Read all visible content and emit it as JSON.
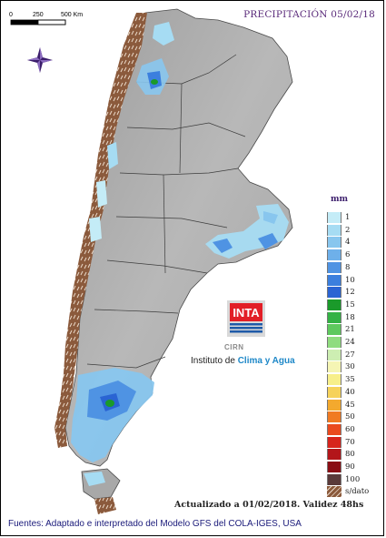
{
  "title": "PRECIPITACIÓN 05/02/18",
  "scale_bar": {
    "labels": [
      "0",
      "250",
      "500 Km"
    ]
  },
  "legend": {
    "unit": "mm",
    "items": [
      {
        "label": "1",
        "color": "#c4ecf7"
      },
      {
        "label": "2",
        "color": "#a6dcf3"
      },
      {
        "label": "4",
        "color": "#88c6ee"
      },
      {
        "label": "6",
        "color": "#6eb0ea"
      },
      {
        "label": "8",
        "color": "#4f93e3"
      },
      {
        "label": "10",
        "color": "#3b7fde"
      },
      {
        "label": "12",
        "color": "#2a64d3"
      },
      {
        "label": "15",
        "color": "#1a9a2a"
      },
      {
        "label": "18",
        "color": "#33b244"
      },
      {
        "label": "21",
        "color": "#5ec95e"
      },
      {
        "label": "24",
        "color": "#8fdc7f"
      },
      {
        "label": "27",
        "color": "#cdeeb2"
      },
      {
        "label": "30",
        "color": "#f5f5b4"
      },
      {
        "label": "35",
        "color": "#f7ef8a"
      },
      {
        "label": "40",
        "color": "#f6d25a"
      },
      {
        "label": "45",
        "color": "#f3a92e"
      },
      {
        "label": "50",
        "color": "#f07a22"
      },
      {
        "label": "60",
        "color": "#ea4a1e"
      },
      {
        "label": "70",
        "color": "#d7241c"
      },
      {
        "label": "80",
        "color": "#b3151a"
      },
      {
        "label": "90",
        "color": "#8a0d14"
      },
      {
        "label": "100",
        "color": "#5a3a3a"
      },
      {
        "label": "s/dato",
        "color": "#9b6b4e"
      }
    ]
  },
  "logo": {
    "brand": "INTA",
    "sub": "CIRN"
  },
  "institute": {
    "prefix": "Instituto de ",
    "highlight": "Clima y Agua"
  },
  "updated": "Actualizado a 01/02/2018. Validez 48hs",
  "sources": "Fuentes: Adaptado e interpretado del Modelo GFS del COLA-IGES, USA"
}
